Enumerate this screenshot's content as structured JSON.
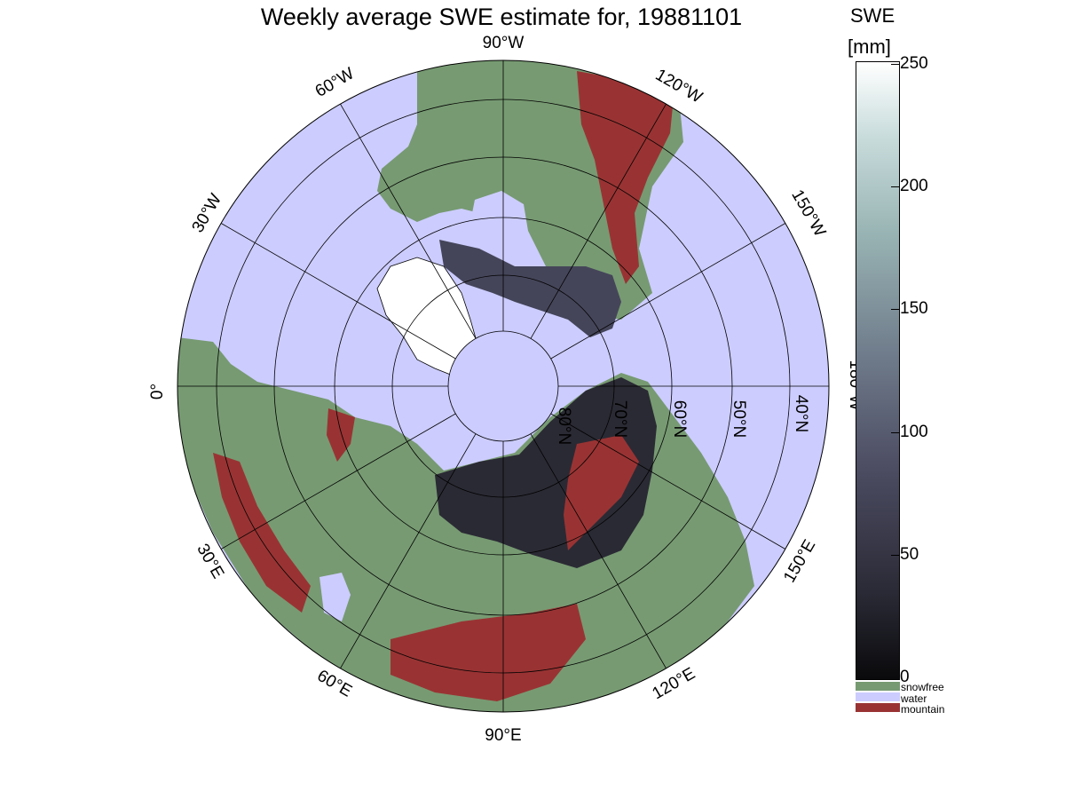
{
  "title": "Weekly average SWE estimate for, 19881101",
  "colorbar": {
    "title_line1": "SWE",
    "title_line2": "[mm]",
    "ticks": [
      "250",
      "200",
      "150",
      "100",
      "50",
      "0"
    ],
    "range": [
      0,
      250
    ],
    "categories": [
      {
        "label": "snowfree",
        "color": "#779a72"
      },
      {
        "label": "water",
        "color": "#ccccff"
      },
      {
        "label": "mountain",
        "color": "#993333"
      }
    ]
  },
  "map": {
    "projection": "north polar stereographic",
    "lon_labels": {
      "lon_90w": "90°W",
      "lon_60w": "60°W",
      "lon_30w": "30°W",
      "lon_0": "0°",
      "lon_30e": "30°E",
      "lon_60e": "60°E",
      "lon_90e": "90°E",
      "lon_120e": "120°E",
      "lon_150e": "150°E",
      "lon_180w": "180°W",
      "lon_150w": "150°W",
      "lon_120w": "120°W"
    },
    "lat_labels": {
      "lat_80": "80°N",
      "lat_70": "70°N",
      "lat_60": "60°N",
      "lat_50": "50°N",
      "lat_40": "40°N"
    },
    "colors": {
      "water": "#ccccff",
      "land": "#779a72",
      "mountain": "#993333",
      "snow": "#2a2a34",
      "graticule": "#000000"
    }
  }
}
